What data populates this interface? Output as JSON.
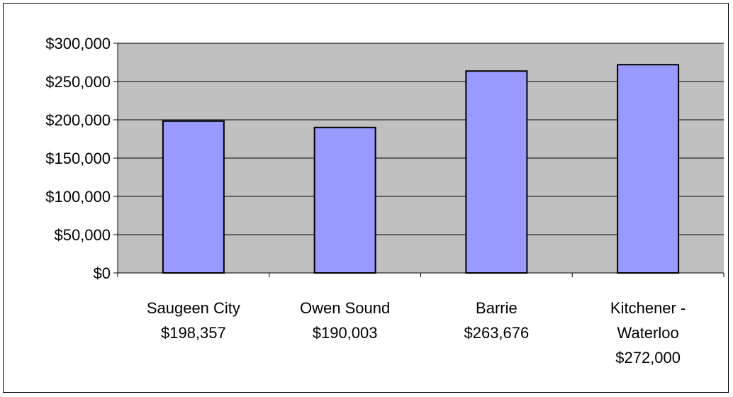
{
  "chart_data": {
    "type": "bar",
    "title": "",
    "xlabel": "",
    "ylabel": "",
    "categories": [
      [
        "Saugeen City",
        "$198,357"
      ],
      [
        "Owen Sound",
        "$190,003"
      ],
      [
        "Barrie",
        "$263,676"
      ],
      [
        "Kitchener -",
        "Waterloo",
        "$272,000"
      ]
    ],
    "values": [
      198357,
      190003,
      263676,
      272000
    ],
    "ylim": [
      0,
      300000
    ],
    "yticks": [
      0,
      50000,
      100000,
      150000,
      200000,
      250000,
      300000
    ],
    "ytick_labels": [
      "$0",
      "$50,000",
      "$100,000",
      "$150,000",
      "$200,000",
      "$250,000",
      "$300,000"
    ],
    "grid": true,
    "legend": "none",
    "colors": {
      "plot_background": "#c0c0c0",
      "bar_fill": "#9999ff",
      "bar_stroke": "#000000",
      "gridline": "#000000"
    }
  }
}
